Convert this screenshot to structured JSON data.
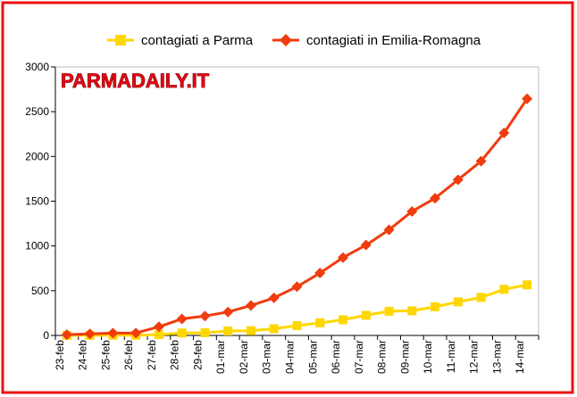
{
  "logo_text": "PARMADAILY.IT",
  "chart_data": {
    "type": "line",
    "categories": [
      "23-feb",
      "24-feb",
      "25-feb",
      "26-feb",
      "27-feb",
      "28-feb",
      "29-feb",
      "01-mar",
      "02-mar",
      "03-mar",
      "04-mar",
      "05-mar",
      "06-mar",
      "07-mar",
      "08-mar",
      "09-mar",
      "10-mar",
      "11-mar",
      "12-mar",
      "13-mar",
      "14-mar"
    ],
    "series": [
      {
        "name": "contagiati a Parma",
        "color": "#ffd700",
        "marker": "square",
        "values": [
          1,
          1,
          3,
          3,
          10,
          28,
          30,
          50,
          53,
          75,
          110,
          140,
          175,
          225,
          270,
          275,
          320,
          375,
          425,
          515,
          565
        ]
      },
      {
        "name": "contagiati in Emilia-Romagna",
        "color": "#f03c0f",
        "marker": "diamond",
        "values": [
          9,
          18,
          26,
          28,
          97,
          185,
          217,
          262,
          335,
          420,
          544,
          698,
          870,
          1010,
          1180,
          1386,
          1533,
          1739,
          1947,
          2263,
          2644
        ]
      }
    ],
    "yticks": [
      0,
      500,
      1000,
      1500,
      2000,
      2500,
      3000
    ],
    "ylim": [
      0,
      3000
    ],
    "grid": false,
    "legend": "top"
  }
}
